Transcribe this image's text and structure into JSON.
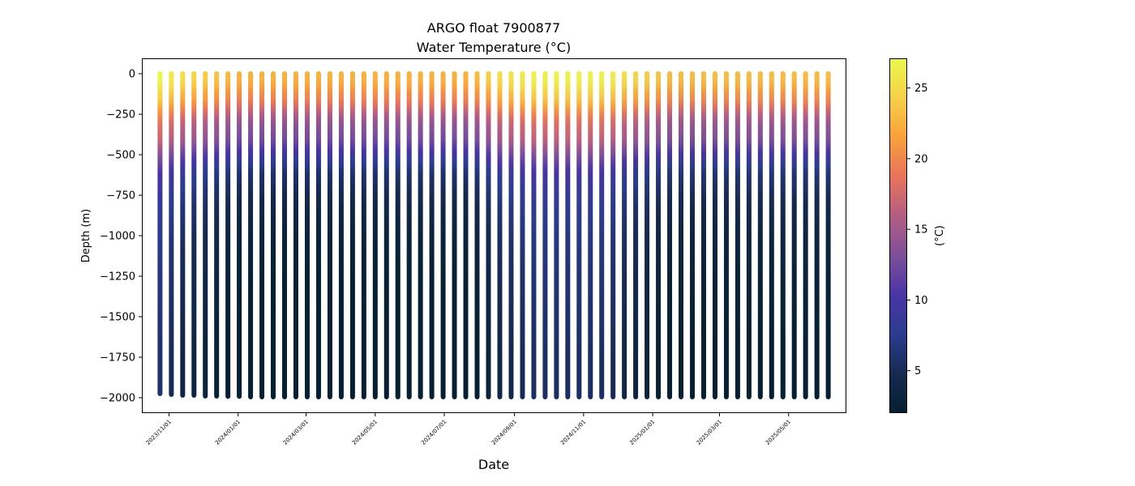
{
  "chart_data": {
    "type": "scatter",
    "title": "ARGO float 7900877",
    "subtitle": "Water Temperature",
    "subtitle_unit": "(°C)",
    "xlabel": "Date",
    "ylabel": "Depth (m)",
    "colorbar_label": "(°C)",
    "colormap": "thermal",
    "colormap_stops": [
      "#04202f",
      "#172a52",
      "#2b3c8f",
      "#4a35a5",
      "#7d4f9a",
      "#b35d84",
      "#e8745a",
      "#f8a03c",
      "#f6d148",
      "#e8f84f"
    ],
    "clim": [
      2.0,
      27.1
    ],
    "colorbar_ticks": [
      5,
      10,
      15,
      20,
      25
    ],
    "ylim": [
      -2095,
      95
    ],
    "y_ticks": [
      0,
      -250,
      -500,
      -750,
      -1000,
      -1250,
      -1500,
      -1750,
      -2000
    ],
    "x_range": [
      "2023-10-08",
      "2025-06-21"
    ],
    "x_tick_labels": [
      "2023/11/01",
      "2024/01/01",
      "2024/03/01",
      "2024/05/01",
      "2024/07/01",
      "2024/09/01",
      "2024/11/01",
      "2025/01/01",
      "2025/03/01",
      "2025/05/01"
    ],
    "profile_dates": [
      "2023-10-24",
      "2023-11-03",
      "2023-11-13",
      "2023-11-23",
      "2023-12-03",
      "2023-12-13",
      "2023-12-23",
      "2024-01-02",
      "2024-01-12",
      "2024-01-22",
      "2024-02-01",
      "2024-02-11",
      "2024-02-21",
      "2024-03-02",
      "2024-03-12",
      "2024-03-22",
      "2024-04-01",
      "2024-04-11",
      "2024-04-21",
      "2024-05-01",
      "2024-05-11",
      "2024-05-21",
      "2024-05-31",
      "2024-06-10",
      "2024-06-20",
      "2024-06-30",
      "2024-07-10",
      "2024-07-20",
      "2024-07-30",
      "2024-08-09",
      "2024-08-19",
      "2024-08-29",
      "2024-09-08",
      "2024-09-18",
      "2024-09-28",
      "2024-10-08",
      "2024-10-18",
      "2024-10-28",
      "2024-11-07",
      "2024-11-17",
      "2024-11-27",
      "2024-12-07",
      "2024-12-17",
      "2024-12-27",
      "2025-01-06",
      "2025-01-16",
      "2025-01-26",
      "2025-02-05",
      "2025-02-15",
      "2025-02-25",
      "2025-03-07",
      "2025-03-17",
      "2025-03-27",
      "2025-04-06",
      "2025-04-16",
      "2025-04-26",
      "2025-05-06",
      "2025-05-16",
      "2025-05-26",
      "2025-06-05"
    ],
    "max_depths": [
      1975,
      1980,
      1985,
      1985,
      1990,
      1990,
      1992,
      1992,
      1995,
      1995,
      1995,
      1995,
      1995,
      1995,
      1995,
      1995,
      1995,
      1995,
      1995,
      1995,
      1995,
      1995,
      1995,
      1995,
      1995,
      1995,
      1995,
      1995,
      1995,
      1995,
      1995,
      1995,
      1995,
      1995,
      1995,
      1995,
      1995,
      1995,
      1995,
      1995,
      1995,
      1995,
      1995,
      1995,
      1995,
      1995,
      1995,
      1995,
      1995,
      1995,
      1995,
      1995,
      1995,
      1995,
      1995,
      1995,
      1995,
      1995,
      1995,
      1995
    ],
    "surface_temperatures": [
      27.0,
      26.0,
      25.0,
      24.5,
      24.0,
      23.5,
      23.0,
      22.5,
      22.5,
      22.5,
      22.5,
      22.5,
      22.5,
      22.5,
      22.5,
      22.5,
      22.5,
      22.5,
      22.5,
      22.5,
      22.5,
      22.5,
      22.5,
      22.5,
      22.5,
      22.5,
      22.5,
      22.5,
      23.0,
      24.0,
      25.0,
      25.5,
      26.0,
      26.5,
      26.5,
      26.5,
      26.5,
      26.5,
      26.5,
      26.5,
      26.0,
      25.0,
      24.5,
      24.0,
      23.5,
      23.0,
      23.0,
      23.0,
      23.0,
      23.0,
      23.0,
      23.0,
      23.0,
      23.0,
      23.0,
      23.0,
      23.0,
      23.0,
      23.0,
      23.0
    ],
    "temperature_profile": {
      "depths": [
        0,
        25,
        50,
        75,
        100,
        150,
        200,
        250,
        300,
        400,
        500,
        600,
        700,
        800,
        1000,
        1200,
        1500,
        1750,
        2000
      ],
      "temperature_below_surface": [
        0,
        0,
        -0.5,
        -1,
        -2,
        -3,
        -5,
        -7,
        -8.5,
        -10,
        -13.5,
        -16.5,
        -17.5,
        -18.5,
        -19.5,
        -20,
        -20.5,
        -21,
        -21
      ]
    }
  }
}
